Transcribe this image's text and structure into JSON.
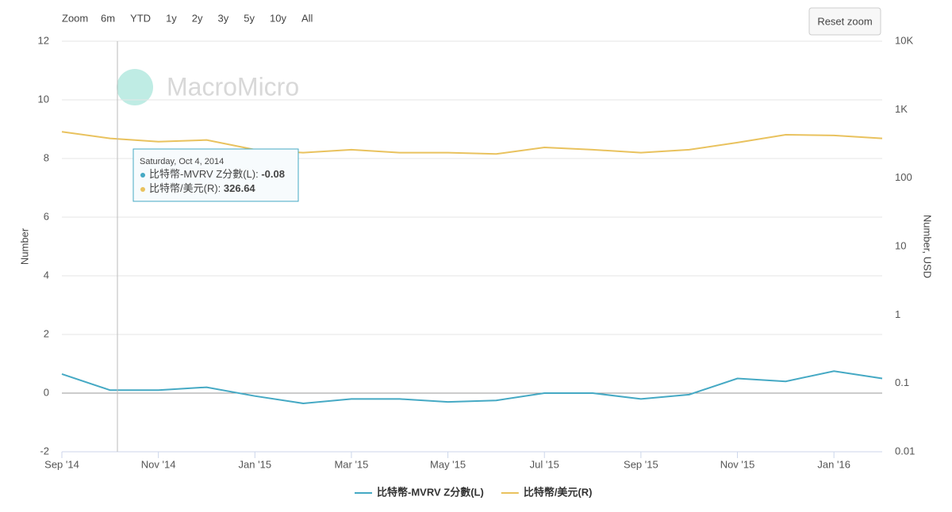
{
  "toolbar": {
    "zoom_label": "Zoom",
    "ranges": [
      "6m",
      "YTD",
      "1y",
      "2y",
      "3y",
      "5y",
      "10y",
      "All"
    ],
    "reset": "Reset zoom"
  },
  "watermark": "MacroMicro",
  "tooltip": {
    "date": "Saturday, Oct 4, 2014",
    "rows": [
      {
        "label": "比特幣-MVRV Z分數(L): ",
        "value": -0.08
      },
      {
        "label": "比特幣/美元(R): ",
        "value": 326.64
      }
    ]
  },
  "chart_data": {
    "type": "line",
    "x": [
      "2014-09",
      "2014-10",
      "2014-11",
      "2014-12",
      "2015-01",
      "2015-02",
      "2015-03",
      "2015-04",
      "2015-05",
      "2015-06",
      "2015-07",
      "2015-08",
      "2015-09",
      "2015-10",
      "2015-11",
      "2015-12",
      "2016-01",
      "2016-02"
    ],
    "xticks": [
      {
        "value": "2014-09",
        "label": "Sep '14"
      },
      {
        "value": "2014-11",
        "label": "Nov '14"
      },
      {
        "value": "2015-01",
        "label": "Jan '15"
      },
      {
        "value": "2015-03",
        "label": "Mar '15"
      },
      {
        "value": "2015-05",
        "label": "May '15"
      },
      {
        "value": "2015-07",
        "label": "Jul '15"
      },
      {
        "value": "2015-09",
        "label": "Sep '15"
      },
      {
        "value": "2015-11",
        "label": "Nov '15"
      },
      {
        "value": "2016-01",
        "label": "Jan '16"
      }
    ],
    "ylabel": "Number",
    "y2label": "Number, USD",
    "ylim": [
      -2,
      12
    ],
    "yticks": [
      -2,
      0,
      2,
      4,
      6,
      8,
      10,
      12
    ],
    "y2lim": [
      0.01,
      10000
    ],
    "y2log": true,
    "y2ticks": [
      0.01,
      0.1,
      1,
      10,
      100,
      {
        "value": 1000,
        "label": "1K"
      },
      {
        "value": 10000,
        "label": "10K"
      }
    ],
    "grid": true,
    "series": [
      {
        "name": "比特幣-MVRV Z分數(L)",
        "color": "#45a9c4",
        "values": [
          0.65,
          0.1,
          0.1,
          0.2,
          -0.1,
          -0.35,
          -0.2,
          -0.2,
          -0.3,
          -0.25,
          0.0,
          0.0,
          -0.2,
          -0.05,
          0.5,
          0.4,
          0.75,
          0.5
        ]
      },
      {
        "name": "比特幣/美元(R)",
        "color": "#e9c25e",
        "axis": "y2",
        "values": [
          475,
          380,
          340,
          360,
          260,
          235,
          260,
          235,
          235,
          225,
          280,
          260,
          235,
          260,
          330,
          430,
          420,
          380
        ]
      }
    ]
  }
}
